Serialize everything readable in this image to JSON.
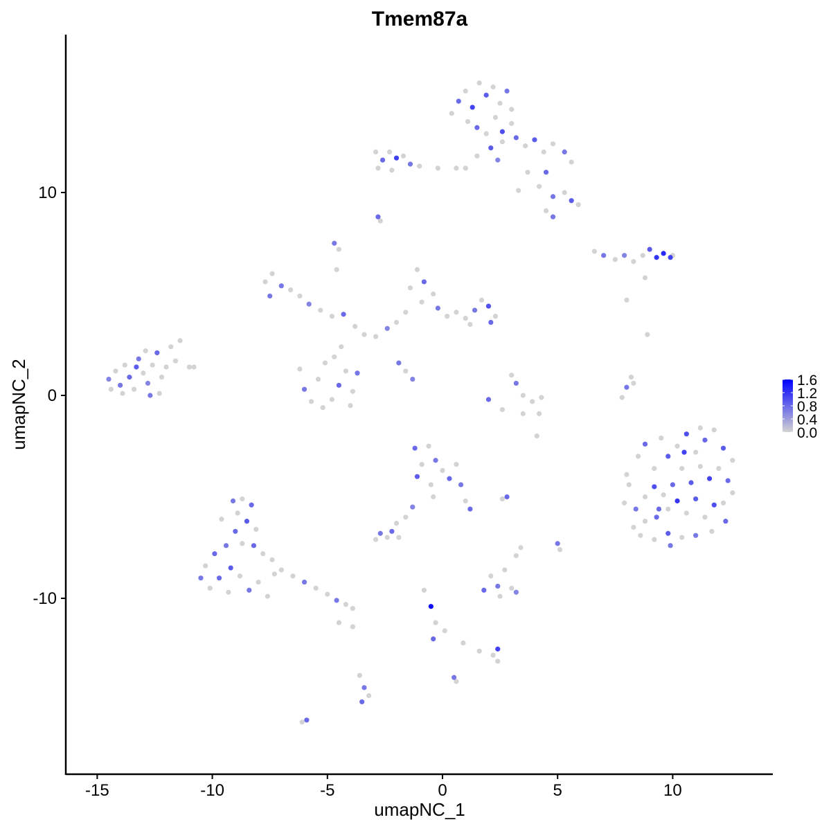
{
  "chart_data": {
    "type": "scatter",
    "title": "Tmem87a",
    "xlabel": "umapNC_1",
    "ylabel": "umapNC_2",
    "xlim": [
      -16.4,
      14.3
    ],
    "ylim": [
      -18.7,
      17.8
    ],
    "xticks": [
      -15,
      -10,
      -5,
      0,
      5,
      10
    ],
    "yticks": [
      -10,
      0,
      10
    ],
    "grid": false,
    "color_scale": {
      "low": "#D3D3D3",
      "high": "#0000FF",
      "min": 0,
      "max": 1.6,
      "ticks": [
        "0.0",
        "0.4",
        "0.8",
        "1.2",
        "1.6"
      ]
    },
    "legend_position": "right",
    "points_format": [
      "umapNC_1",
      "umapNC_2",
      "expression"
    ],
    "points": [
      [
        -14.5,
        0.8,
        0.6
      ],
      [
        -14.2,
        1.2,
        0
      ],
      [
        -14,
        0.5,
        0.7
      ],
      [
        -13.8,
        1.5,
        0
      ],
      [
        -13.6,
        0.9,
        0.8
      ],
      [
        -13.4,
        0.3,
        0
      ],
      [
        -13.2,
        1.8,
        0.7
      ],
      [
        -13,
        1.1,
        0
      ],
      [
        -12.8,
        0.6,
        0.6
      ],
      [
        -12.6,
        1.5,
        0
      ],
      [
        -12.4,
        2.1,
        0.8
      ],
      [
        -12.2,
        0.9,
        0
      ],
      [
        -12,
        1.4,
        0
      ],
      [
        -11.8,
        2.4,
        0
      ],
      [
        -11.6,
        1.7,
        0
      ],
      [
        -11.4,
        2.7,
        0
      ],
      [
        -11,
        1.4,
        0
      ],
      [
        -10.8,
        1.4,
        0
      ],
      [
        -13.9,
        0.1,
        0
      ],
      [
        -12.7,
        0,
        0.7
      ],
      [
        -12.9,
        2.2,
        0
      ],
      [
        -13.3,
        1.4,
        0.9
      ],
      [
        -14.4,
        0.3,
        0
      ],
      [
        -12.3,
        0.1,
        0
      ],
      [
        0.7,
        14.5,
        0.8
      ],
      [
        1,
        15,
        0
      ],
      [
        1.3,
        14.2,
        1.1
      ],
      [
        1.6,
        15.4,
        0
      ],
      [
        1.9,
        14.8,
        0.9
      ],
      [
        2.2,
        15.2,
        0
      ],
      [
        2.5,
        14.4,
        0
      ],
      [
        2.8,
        15,
        0.7
      ],
      [
        3,
        14.1,
        0
      ],
      [
        1.1,
        13.5,
        0
      ],
      [
        1.5,
        13.2,
        0.8
      ],
      [
        1.9,
        12.9,
        0
      ],
      [
        2.3,
        13.7,
        0
      ],
      [
        2.6,
        13,
        1
      ],
      [
        3,
        13.4,
        0
      ],
      [
        2.1,
        12.2,
        0.9
      ],
      [
        2.6,
        12.5,
        0
      ],
      [
        3.2,
        12.7,
        0.8
      ],
      [
        3.6,
        12.3,
        0
      ],
      [
        4,
        12.6,
        0.9
      ],
      [
        4.4,
        12,
        0
      ],
      [
        4.8,
        12.4,
        0
      ],
      [
        5.3,
        12,
        0.7
      ],
      [
        5.6,
        11.5,
        0
      ],
      [
        4.5,
        11,
        0.8
      ],
      [
        3.7,
        11,
        0
      ],
      [
        4.2,
        10.3,
        0
      ],
      [
        4.8,
        9.8,
        0.7
      ],
      [
        5.3,
        10,
        0
      ],
      [
        5.6,
        9.6,
        0.9
      ],
      [
        5.9,
        9.4,
        0
      ],
      [
        4.5,
        9.1,
        0
      ],
      [
        4.8,
        8.8,
        0.7
      ],
      [
        3.3,
        10.1,
        0
      ],
      [
        1.5,
        11.8,
        0
      ],
      [
        1,
        11.2,
        0
      ],
      [
        2.4,
        11.6,
        0.6
      ],
      [
        0.4,
        13.9,
        0
      ],
      [
        -2.9,
        12,
        0
      ],
      [
        -2.6,
        11.6,
        0.8
      ],
      [
        -2.3,
        12,
        0
      ],
      [
        -2,
        11.7,
        1.1
      ],
      [
        -1.7,
        11.8,
        0
      ],
      [
        -1.4,
        11.4,
        0.7
      ],
      [
        -2.8,
        11.2,
        0
      ],
      [
        -2.2,
        11.1,
        0
      ],
      [
        -1,
        11.3,
        0
      ],
      [
        -0.2,
        11.2,
        0
      ],
      [
        0.6,
        11.2,
        0
      ],
      [
        -2.8,
        8.8,
        0.8
      ],
      [
        -2.7,
        8.6,
        0
      ],
      [
        -4.7,
        7.5,
        0.7
      ],
      [
        -4.5,
        7.2,
        0
      ],
      [
        6.6,
        7.1,
        0
      ],
      [
        7,
        6.9,
        0.7
      ],
      [
        7.5,
        6.7,
        0
      ],
      [
        7.9,
        6.9,
        0.6
      ],
      [
        8.3,
        6.6,
        0
      ],
      [
        8.7,
        6.9,
        0
      ],
      [
        9,
        7.2,
        0.9
      ],
      [
        9.3,
        6.8,
        1.2
      ],
      [
        9.6,
        7,
        1.3
      ],
      [
        9.9,
        6.8,
        1.1
      ],
      [
        10,
        6.9,
        0
      ],
      [
        8.8,
        5.8,
        0
      ],
      [
        8,
        4.7,
        0
      ],
      [
        -7.7,
        5.6,
        0
      ],
      [
        -7.4,
        6,
        0
      ],
      [
        -7,
        5.4,
        0.7
      ],
      [
        -6.6,
        5.2,
        0
      ],
      [
        -6.2,
        4.9,
        0
      ],
      [
        -5.8,
        4.5,
        0.6
      ],
      [
        -7.5,
        4.9,
        0.7
      ],
      [
        -5.3,
        4.2,
        0
      ],
      [
        -4.8,
        3.9,
        0
      ],
      [
        -4.3,
        4,
        0.8
      ],
      [
        -3.8,
        3.4,
        0
      ],
      [
        -3.4,
        3,
        0
      ],
      [
        -2.9,
        2.9,
        0
      ],
      [
        -2.4,
        3.3,
        0.6
      ],
      [
        -4.6,
        6.2,
        0
      ],
      [
        -6.2,
        1.3,
        0
      ],
      [
        -6,
        0.3,
        0.7
      ],
      [
        -5.7,
        -0.3,
        0
      ],
      [
        -5.4,
        0.8,
        0
      ],
      [
        -5.1,
        1.6,
        0
      ],
      [
        -4.8,
        -0.2,
        0
      ],
      [
        -4.5,
        0.5,
        0.8
      ],
      [
        -4.2,
        1.2,
        0
      ],
      [
        -3.9,
        0.2,
        0
      ],
      [
        -3.7,
        1.1,
        0.7
      ],
      [
        -4,
        -0.5,
        0
      ],
      [
        -5.2,
        -0.6,
        0
      ],
      [
        -4.4,
        2.4,
        0
      ],
      [
        -4.7,
        1.9,
        0
      ],
      [
        -1.1,
        6.2,
        0
      ],
      [
        -0.8,
        5.6,
        0.8
      ],
      [
        -0.4,
        5,
        0
      ],
      [
        -0.9,
        4.6,
        0
      ],
      [
        -0.2,
        4.3,
        0.7
      ],
      [
        0.2,
        3.9,
        0
      ],
      [
        0.6,
        4.1,
        0
      ],
      [
        1,
        3.8,
        0
      ],
      [
        1.4,
        4.2,
        0.7
      ],
      [
        1.7,
        4.7,
        0
      ],
      [
        2,
        4.4,
        1
      ],
      [
        2.3,
        3.9,
        0
      ],
      [
        2.1,
        3.6,
        0.8
      ],
      [
        1.2,
        3.5,
        0
      ],
      [
        -1.6,
        4.1,
        0
      ],
      [
        -2,
        3.6,
        0
      ],
      [
        -1.9,
        1.6,
        0.7
      ],
      [
        -1.6,
        1.2,
        0
      ],
      [
        -1.3,
        0.8,
        0.6
      ],
      [
        -1.4,
        5.3,
        0
      ],
      [
        3,
        1,
        0
      ],
      [
        3.2,
        0.6,
        0.7
      ],
      [
        3.5,
        0,
        0
      ],
      [
        3.9,
        -0.3,
        0
      ],
      [
        4.2,
        -0.9,
        0
      ],
      [
        3.5,
        -0.9,
        0
      ],
      [
        2.6,
        -0.7,
        0
      ],
      [
        2,
        -0.2,
        0.8
      ],
      [
        4.3,
        -0.1,
        0
      ],
      [
        8.2,
        0.9,
        0
      ],
      [
        8,
        0.4,
        0.7
      ],
      [
        7.8,
        -0.1,
        0
      ],
      [
        8.3,
        0.6,
        0
      ],
      [
        8.5,
        -3,
        0
      ],
      [
        8.8,
        -2.4,
        0.8
      ],
      [
        9.2,
        -3.6,
        0
      ],
      [
        9.5,
        -2.1,
        0
      ],
      [
        9.8,
        -3,
        0.9
      ],
      [
        10.2,
        -2.5,
        0
      ],
      [
        10.6,
        -1.9,
        1
      ],
      [
        11,
        -2.8,
        0
      ],
      [
        11.4,
        -2.2,
        0.8
      ],
      [
        11.8,
        -1.7,
        0
      ],
      [
        12.2,
        -2.6,
        0.9
      ],
      [
        12.6,
        -3.2,
        0
      ],
      [
        12.4,
        -4.2,
        0.8
      ],
      [
        12,
        -3.6,
        0
      ],
      [
        11.6,
        -4.1,
        1.1
      ],
      [
        11.2,
        -3.5,
        0
      ],
      [
        10.8,
        -4.3,
        0.9
      ],
      [
        10.4,
        -3.6,
        0
      ],
      [
        10,
        -4.4,
        0.8
      ],
      [
        9.6,
        -4.9,
        0
      ],
      [
        9.2,
        -4.5,
        1
      ],
      [
        8.8,
        -5,
        0
      ],
      [
        8.4,
        -5.6,
        0.7
      ],
      [
        8.1,
        -4.4,
        0
      ],
      [
        8.3,
        -6.5,
        0
      ],
      [
        8.8,
        -6.2,
        0
      ],
      [
        9.3,
        -6,
        0.8
      ],
      [
        9.8,
        -5.6,
        0
      ],
      [
        10.2,
        -5.2,
        1.2
      ],
      [
        10.6,
        -5.8,
        0
      ],
      [
        11,
        -5.1,
        0.9
      ],
      [
        11.4,
        -6,
        0
      ],
      [
        11.8,
        -5.4,
        1
      ],
      [
        12.2,
        -5.3,
        0
      ],
      [
        12.6,
        -4.8,
        0
      ],
      [
        12.3,
        -6.2,
        0.8
      ],
      [
        11.7,
        -6.7,
        0
      ],
      [
        11,
        -6.9,
        0.7
      ],
      [
        10.4,
        -7,
        0
      ],
      [
        9.8,
        -6.8,
        0.9
      ],
      [
        9.2,
        -7.1,
        0
      ],
      [
        8.6,
        -6.9,
        0
      ],
      [
        9.9,
        -7.4,
        0.7
      ],
      [
        8,
        -3.9,
        0
      ],
      [
        7.9,
        -5.3,
        0
      ],
      [
        11.2,
        -1.6,
        0
      ],
      [
        10.5,
        -2.8,
        1.1
      ],
      [
        9.4,
        -5.6,
        0.8
      ],
      [
        -1.2,
        -2.6,
        0.8
      ],
      [
        -0.9,
        -3.4,
        0
      ],
      [
        -1.1,
        -4,
        0.9
      ],
      [
        -0.6,
        -2.5,
        0
      ],
      [
        -0.3,
        -3.2,
        0.7
      ],
      [
        -0.5,
        -4.4,
        0
      ],
      [
        0,
        -3.7,
        0
      ],
      [
        0.3,
        -4.1,
        0.8
      ],
      [
        0.6,
        -3.4,
        0
      ],
      [
        0.8,
        -4.4,
        0.7
      ],
      [
        1,
        -5.2,
        0
      ],
      [
        1.2,
        -5.6,
        0.8
      ],
      [
        -0.4,
        -5,
        0
      ],
      [
        -1.3,
        -5.5,
        0.6
      ],
      [
        -1.6,
        -6,
        0
      ],
      [
        -2,
        -6.3,
        0
      ],
      [
        -2.7,
        -6.8,
        0.7
      ],
      [
        -2.4,
        -7,
        0
      ],
      [
        -2.2,
        -6.7,
        0.8
      ],
      [
        -2.9,
        -7.1,
        0
      ],
      [
        -1.9,
        -7,
        0
      ],
      [
        -9.1,
        -5.2,
        0.7
      ],
      [
        -8.7,
        -5.1,
        0
      ],
      [
        -8.3,
        -5.4,
        0.8
      ],
      [
        -8.9,
        -5.8,
        0
      ],
      [
        -8.5,
        -6.2,
        0.9
      ],
      [
        -8.1,
        -6.6,
        0
      ],
      [
        -9,
        -6.7,
        0.8
      ],
      [
        -8.7,
        -7.3,
        0
      ],
      [
        -8.2,
        -7.4,
        0.8
      ],
      [
        -7.8,
        -7.8,
        0
      ],
      [
        -9.4,
        -7.4,
        0.7
      ],
      [
        -9.9,
        -7.8,
        0.8
      ],
      [
        -10.3,
        -8.4,
        0
      ],
      [
        -10.5,
        -9,
        0.7
      ],
      [
        -10.1,
        -9.5,
        0
      ],
      [
        -9.7,
        -9,
        0.8
      ],
      [
        -9.3,
        -9.7,
        0
      ],
      [
        -9.2,
        -8.5,
        0.9
      ],
      [
        -8.8,
        -8.9,
        0
      ],
      [
        -8.4,
        -9.6,
        0.7
      ],
      [
        -8,
        -9.2,
        0
      ],
      [
        -7.6,
        -9.9,
        0
      ],
      [
        -7.3,
        -8.8,
        0
      ],
      [
        -7,
        -8.6,
        0
      ],
      [
        -6.5,
        -8.9,
        0
      ],
      [
        -6,
        -9.2,
        0.7
      ],
      [
        -5.5,
        -9.5,
        0
      ],
      [
        -5,
        -9.8,
        0
      ],
      [
        -4.6,
        -10.1,
        0.7
      ],
      [
        -4.2,
        -10.3,
        0
      ],
      [
        -3.9,
        -10.5,
        0
      ],
      [
        -7.4,
        -8.1,
        0
      ],
      [
        -9.6,
        -6.1,
        0
      ],
      [
        1.8,
        -9.6,
        0.8
      ],
      [
        2.1,
        -8.9,
        0
      ],
      [
        2.4,
        -9.4,
        0.7
      ],
      [
        2.7,
        -8.6,
        0
      ],
      [
        3,
        -9.5,
        0
      ],
      [
        3.2,
        -9.7,
        0.6
      ],
      [
        2.5,
        -9.9,
        0
      ],
      [
        -0.8,
        -9.6,
        0
      ],
      [
        -0.5,
        -10.4,
        1.5
      ],
      [
        -0.3,
        -11.2,
        0
      ],
      [
        -0.4,
        -12,
        0.8
      ],
      [
        0.1,
        -11.6,
        0
      ],
      [
        0.9,
        -12.2,
        0
      ],
      [
        1.6,
        -12.6,
        0
      ],
      [
        2.2,
        -12.8,
        0
      ],
      [
        2.4,
        -12.5,
        1.1
      ],
      [
        2.4,
        -13.1,
        0
      ],
      [
        -3.6,
        -13.8,
        0
      ],
      [
        -3.4,
        -14.4,
        0.7
      ],
      [
        -3.2,
        -14.8,
        0
      ],
      [
        -3.5,
        -15.1,
        0.8
      ],
      [
        -6.1,
        -16.1,
        0
      ],
      [
        -5.9,
        -16,
        0.8
      ],
      [
        0.5,
        -13.9,
        0.7
      ],
      [
        0.6,
        -14.1,
        0
      ],
      [
        2.8,
        -5,
        0.8
      ],
      [
        2.6,
        -5.1,
        0
      ],
      [
        5,
        -7.3,
        0.7
      ],
      [
        5.1,
        -7.6,
        0
      ],
      [
        3.4,
        -7.5,
        0
      ],
      [
        3.2,
        -7.9,
        0
      ],
      [
        4.1,
        -2,
        0
      ],
      [
        8.9,
        3,
        0
      ],
      [
        -3.9,
        -11.4,
        0
      ],
      [
        -4.5,
        -11.2,
        0
      ]
    ]
  }
}
